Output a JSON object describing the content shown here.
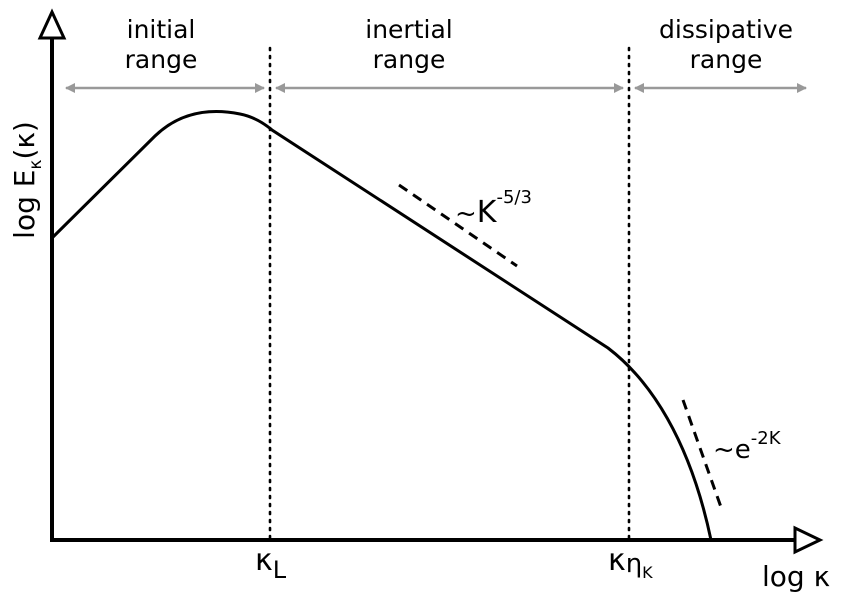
{
  "ranges": {
    "initial": {
      "line1": "initial",
      "line2": "range"
    },
    "inertial": {
      "line1": "inertial",
      "line2": "range"
    },
    "dissipative": {
      "line1": "dissipative",
      "line2": "range"
    }
  },
  "axes": {
    "x_label": "log κ",
    "y_label_prefix": "log E",
    "y_label_sub": "κ",
    "y_label_suffix": "(κ)"
  },
  "ticks": {
    "kappa_L_main": "κ",
    "kappa_L_sub": "L",
    "kappa_eta_main": "κ",
    "kappa_eta_sub": "η",
    "kappa_eta_subsub": "K"
  },
  "annotations": {
    "inertial_slope_prefix": "~",
    "inertial_slope_base": "K",
    "inertial_slope_exp": "-5/3",
    "dissipative_prefix": "~",
    "dissipative_base": "e",
    "dissipative_exp": "-2K"
  },
  "colors": {
    "curve": "#000000",
    "range_arrow": "#999999",
    "divider": "#000000"
  }
}
